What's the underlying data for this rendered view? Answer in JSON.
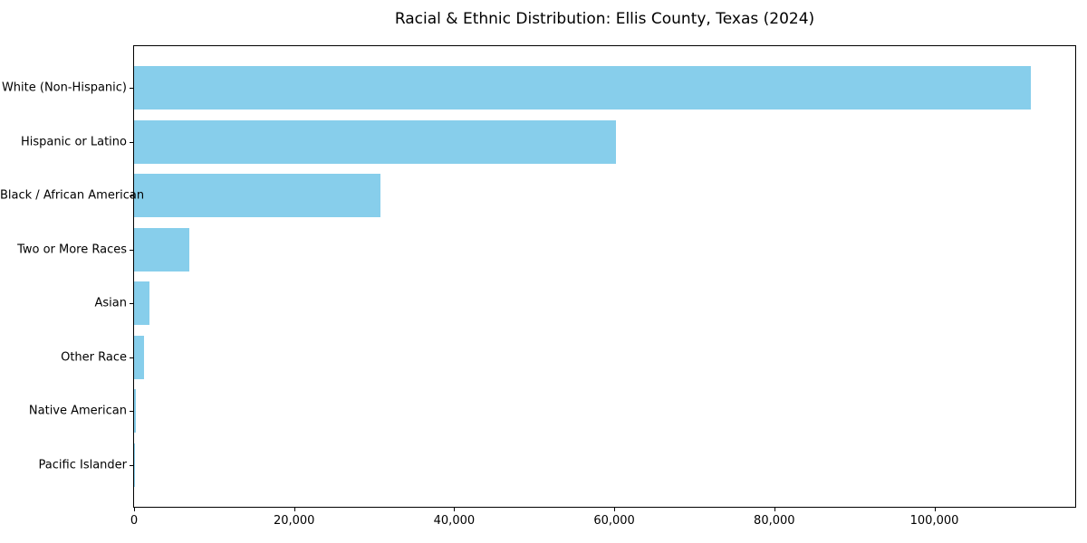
{
  "chart_data": {
    "type": "bar",
    "orientation": "horizontal",
    "title": "Racial & Ethnic Distribution: Ellis County, Texas (2024)",
    "categories": [
      "White (Non-Hispanic)",
      "Hispanic or Latino",
      "Black / African American",
      "Two or More Races",
      "Asian",
      "Other Race",
      "Native American",
      "Pacific Islander"
    ],
    "values": [
      112000,
      60200,
      30800,
      6900,
      1900,
      1300,
      250,
      80
    ],
    "xlabel": "",
    "ylabel": "",
    "xlim": [
      0,
      117600
    ],
    "x_tick_values": [
      0,
      20000,
      40000,
      60000,
      80000,
      100000
    ],
    "x_tick_labels": [
      "0",
      "20,000",
      "40,000",
      "60,000",
      "80,000",
      "100,000"
    ],
    "bar_color": "#87CEEB",
    "axis_color": "#000000",
    "background_color": "#ffffff",
    "grid": false,
    "legend": "none"
  }
}
